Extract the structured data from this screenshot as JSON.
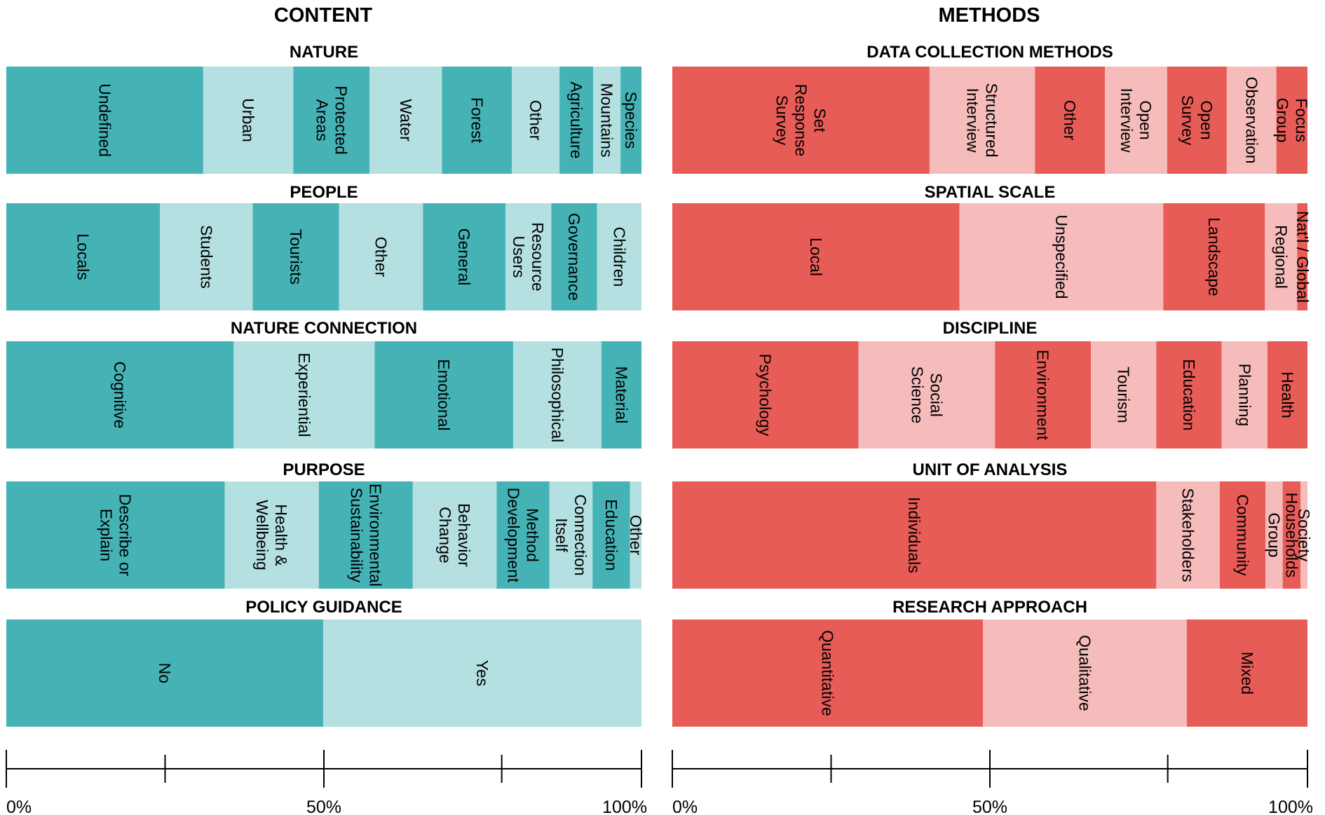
{
  "colors": {
    "dark": "#45b3b6",
    "light": "#b5e0e1",
    "red": "#e85c58",
    "pink": "#f5bcbb",
    "axis": "#000000",
    "text": "#000000"
  },
  "columns": [
    {
      "title": "CONTENT"
    },
    {
      "title": "METHODS"
    }
  ],
  "axis": {
    "labels": [
      "0%",
      "50%",
      "100%"
    ],
    "ticks_percent": [
      0,
      25,
      50,
      78,
      100
    ]
  },
  "chart_data": [
    {
      "type": "bar",
      "orientation": "horizontal",
      "stacked": "100%",
      "column_title": "CONTENT",
      "xlim": [
        0,
        100
      ],
      "xticks": [
        0,
        25,
        50,
        78,
        100
      ],
      "xtick_labels": [
        "0%",
        "50%",
        "100%"
      ],
      "panels": [
        {
          "title": "NATURE",
          "segments": [
            {
              "label": "Undefined",
              "value": 31
            },
            {
              "label": "Urban",
              "value": 14.2
            },
            {
              "label": "Protected Areas",
              "value": 12
            },
            {
              "label": "Water",
              "value": 11.4
            },
            {
              "label": "Forest",
              "value": 11
            },
            {
              "label": "Other",
              "value": 7.5
            },
            {
              "label": "Agriculture",
              "value": 5.3
            },
            {
              "label": "Mountains",
              "value": 4.3
            },
            {
              "label": "Species",
              "value": 3.3
            }
          ]
        },
        {
          "title": "PEOPLE",
          "segments": [
            {
              "label": "Locals",
              "value": 24.2
            },
            {
              "label": "Students",
              "value": 14.6
            },
            {
              "label": "Tourists",
              "value": 13.6
            },
            {
              "label": "Other",
              "value": 13.2
            },
            {
              "label": "General",
              "value": 13
            },
            {
              "label": "Resource Users",
              "value": 7.2
            },
            {
              "label": "Governance",
              "value": 7.2
            },
            {
              "label": "Children",
              "value": 7
            }
          ]
        },
        {
          "title": "NATURE CONNECTION",
          "segments": [
            {
              "label": "Cognitive",
              "value": 35.8
            },
            {
              "label": "Experiential",
              "value": 22.2
            },
            {
              "label": "Emotional",
              "value": 21.8
            },
            {
              "label": "Philosophical",
              "value": 13.9
            },
            {
              "label": "Material",
              "value": 6.3
            }
          ]
        },
        {
          "title": "PURPOSE",
          "segments": [
            {
              "label": "Describe or Explain",
              "value": 34.4
            },
            {
              "label": "Health & Wellbeing",
              "value": 14.8
            },
            {
              "label": "Environmental Sustainability",
              "value": 14.8
            },
            {
              "label": "Behavior Change",
              "value": 13.2
            },
            {
              "label": "Method Development",
              "value": 8.3
            },
            {
              "label": "Connection Itself",
              "value": 6.8
            },
            {
              "label": "Education",
              "value": 5.9
            },
            {
              "label": "Other",
              "value": 1.8
            }
          ]
        },
        {
          "title": "POLICY GUIDANCE",
          "segments": [
            {
              "label": "No",
              "value": 49.9
            },
            {
              "label": "Yes",
              "value": 50.1
            }
          ]
        }
      ]
    },
    {
      "type": "bar",
      "orientation": "horizontal",
      "stacked": "100%",
      "column_title": "METHODS",
      "xlim": [
        0,
        100
      ],
      "xticks": [
        0,
        25,
        50,
        78,
        100
      ],
      "xtick_labels": [
        "0%",
        "50%",
        "100%"
      ],
      "panels": [
        {
          "title": "DATA COLLECTION METHODS",
          "segments": [
            {
              "label": "Set Response Survey",
              "value": 40.5
            },
            {
              "label": "Structured Interview",
              "value": 16.6
            },
            {
              "label": "Other",
              "value": 11
            },
            {
              "label": "Open Interview",
              "value": 9.8
            },
            {
              "label": "Open Survey",
              "value": 9.4
            },
            {
              "label": "Observation",
              "value": 7.8
            },
            {
              "label": "Focus Group",
              "value": 4.9
            }
          ]
        },
        {
          "title": "SPATIAL SCALE",
          "segments": [
            {
              "label": "Local",
              "value": 45.2
            },
            {
              "label": "Unspecified",
              "value": 32.1
            },
            {
              "label": "Landscape",
              "value": 16
            },
            {
              "label": "Regional",
              "value": 5.1
            },
            {
              "label": "Nat'l / Global",
              "value": 1.6
            }
          ]
        },
        {
          "title": "DISCIPLINE",
          "segments": [
            {
              "label": "Psychology",
              "value": 29.3
            },
            {
              "label": "Social Science",
              "value": 21.5
            },
            {
              "label": "Environment",
              "value": 15.1
            },
            {
              "label": "Tourism",
              "value": 10.3
            },
            {
              "label": "Education",
              "value": 10.3
            },
            {
              "label": "Planning",
              "value": 7.2
            },
            {
              "label": "Health",
              "value": 6.3
            }
          ]
        },
        {
          "title": "UNIT OF ANALYSIS",
          "segments": [
            {
              "label": "Individuals",
              "value": 76.2
            },
            {
              "label": "Stakeholders",
              "value": 10
            },
            {
              "label": "Community",
              "value": 7.2
            },
            {
              "label": "Group",
              "value": 2.7
            },
            {
              "label": "Households",
              "value": 2.8
            },
            {
              "label": "Society",
              "value": 1.1
            }
          ]
        },
        {
          "title": "RESEARCH APPROACH",
          "segments": [
            {
              "label": "Quantitative",
              "value": 48.9
            },
            {
              "label": "Qualitative",
              "value": 32.1
            },
            {
              "label": "Mixed",
              "value": 19
            }
          ]
        }
      ]
    }
  ]
}
